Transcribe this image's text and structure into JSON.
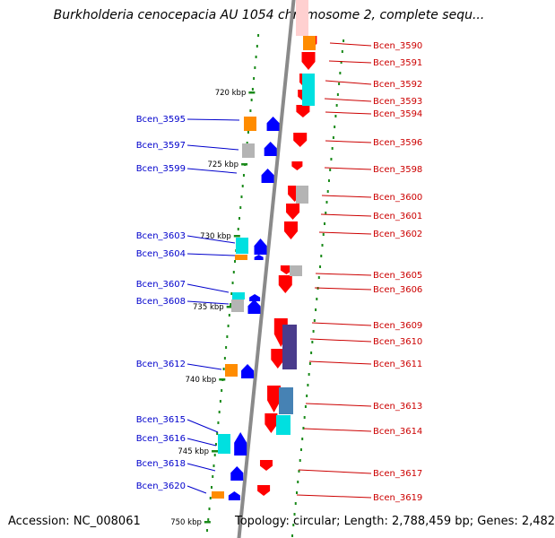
{
  "title": "Burkholderia cenocepacia AU 1054 chromosome 2, complete sequ...",
  "footer": {
    "accession": "Accession: NC_008061",
    "topology": "Topology: circular; Length: 2,788,459 bp; Genes: 2,482"
  },
  "colors": {
    "backbone": "#8a8a8a",
    "tick": "#1a8a1a",
    "forward_gene": "#ff0000",
    "reverse_gene": "#0000ff",
    "left_label": "#0000cc",
    "right_label": "#cc0000",
    "feature_orange": "#ff8c00",
    "feature_cyan": "#00e0e0",
    "feature_gray": "#b4b4b4",
    "feature_purple": "#4a3c8c",
    "feature_steelblue": "#4682b4"
  },
  "kbp_labels": [
    "720 kbp",
    "725 kbp",
    "730 kbp",
    "735 kbp",
    "740 kbp",
    "745 kbp",
    "750 kbp"
  ],
  "left_genes": [
    "Bcen_3595",
    "Bcen_3597",
    "Bcen_3599",
    "Bcen_3603",
    "Bcen_3604",
    "Bcen_3607",
    "Bcen_3608",
    "Bcen_3612",
    "Bcen_3615",
    "Bcen_3616",
    "Bcen_3618",
    "Bcen_3620"
  ],
  "right_genes": [
    "Bcen_3590",
    "Bcen_3591",
    "Bcen_3592",
    "Bcen_3593",
    "Bcen_3594",
    "Bcen_3596",
    "Bcen_3598",
    "Bcen_3600",
    "Bcen_3601",
    "Bcen_3602",
    "Bcen_3605",
    "Bcen_3606",
    "Bcen_3609",
    "Bcen_3610",
    "Bcen_3611",
    "Bcen_3613",
    "Bcen_3614",
    "Bcen_3617",
    "Bcen_3619"
  ]
}
